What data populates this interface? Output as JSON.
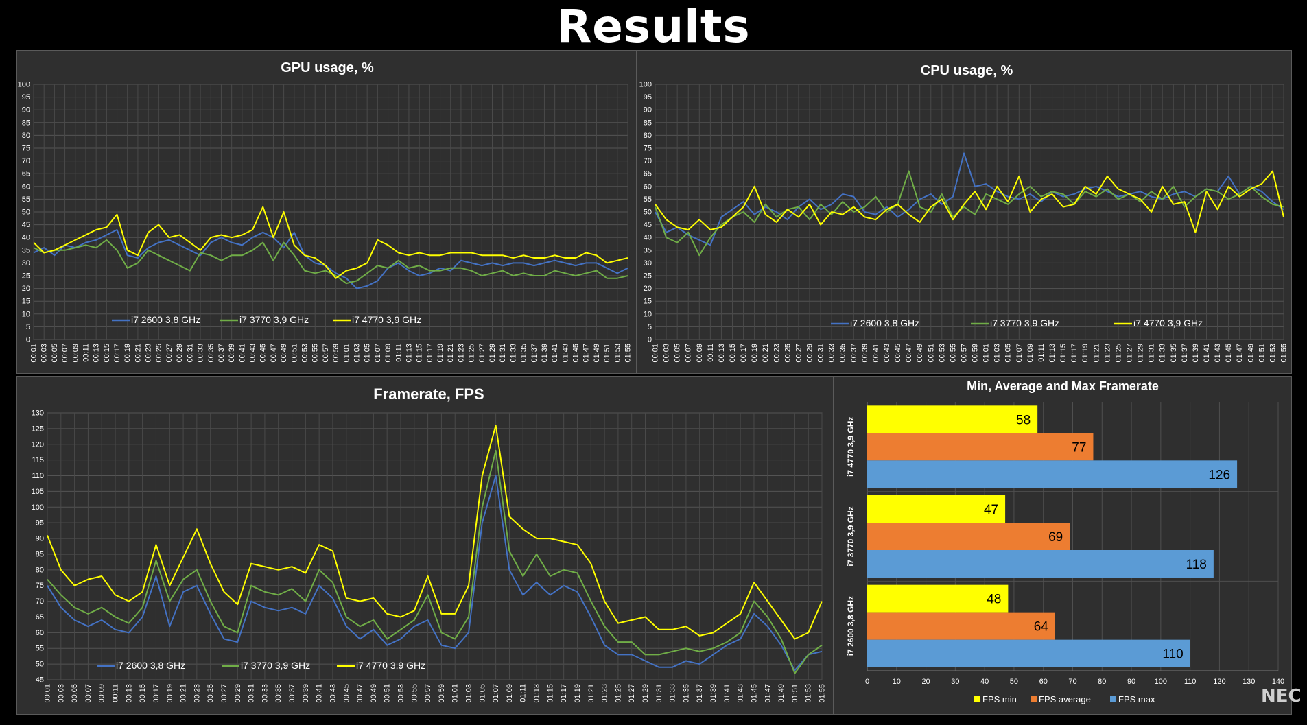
{
  "page_title": "Results",
  "watermark": "NEC",
  "chart_data": [
    {
      "id": "gpu",
      "type": "line",
      "title": "GPU usage, %",
      "ylim": [
        0,
        100
      ],
      "ytick_step": 5,
      "grid": true,
      "legend_position": "bottom-inside",
      "x": [
        "00:01",
        "00:03",
        "00:05",
        "00:07",
        "00:09",
        "00:11",
        "00:13",
        "00:15",
        "00:17",
        "00:19",
        "00:21",
        "00:23",
        "00:25",
        "00:27",
        "00:29",
        "00:31",
        "00:33",
        "00:35",
        "00:37",
        "00:39",
        "00:41",
        "00:43",
        "00:45",
        "00:47",
        "00:49",
        "00:51",
        "00:53",
        "00:55",
        "00:57",
        "00:59",
        "01:01",
        "01:03",
        "01:05",
        "01:07",
        "01:09",
        "01:11",
        "01:13",
        "01:15",
        "01:17",
        "01:19",
        "01:21",
        "01:23",
        "01:25",
        "01:27",
        "01:29",
        "01:31",
        "01:33",
        "01:35",
        "01:37",
        "01:39",
        "01:41",
        "01:43",
        "01:45",
        "01:47",
        "01:49",
        "01:51",
        "01:53",
        "01:55"
      ],
      "series": [
        {
          "name": "i7 2600 3,8 GHz",
          "color": "#4472c4",
          "values": [
            34,
            36,
            33,
            37,
            36,
            38,
            39,
            41,
            43,
            33,
            32,
            36,
            38,
            39,
            37,
            35,
            33,
            38,
            40,
            38,
            37,
            40,
            42,
            40,
            36,
            42,
            33,
            30,
            29,
            26,
            24,
            20,
            21,
            23,
            28,
            30,
            27,
            25,
            26,
            28,
            27,
            31,
            30,
            29,
            30,
            29,
            30,
            30,
            29,
            30,
            31,
            30,
            29,
            30,
            30,
            28,
            26,
            28
          ]
        },
        {
          "name": "i7 3770  3,9 GHz",
          "color": "#70ad47",
          "values": [
            36,
            34,
            35,
            35,
            36,
            37,
            36,
            39,
            35,
            28,
            30,
            35,
            33,
            31,
            29,
            27,
            34,
            33,
            31,
            33,
            33,
            35,
            38,
            31,
            38,
            33,
            27,
            26,
            27,
            25,
            22,
            23,
            26,
            29,
            28,
            31,
            28,
            29,
            27,
            27,
            28,
            28,
            27,
            25,
            26,
            27,
            25,
            26,
            25,
            25,
            27,
            26,
            25,
            26,
            27,
            24,
            24,
            25
          ]
        },
        {
          "name": "i7 4770  3,9 GHz",
          "color": "#ffff00",
          "values": [
            38,
            34,
            35,
            37,
            39,
            41,
            43,
            44,
            49,
            35,
            33,
            42,
            45,
            40,
            41,
            38,
            35,
            40,
            41,
            40,
            41,
            43,
            52,
            40,
            50,
            37,
            33,
            32,
            29,
            24,
            27,
            28,
            30,
            39,
            37,
            34,
            33,
            34,
            33,
            33,
            34,
            34,
            34,
            33,
            33,
            33,
            32,
            33,
            32,
            32,
            33,
            32,
            32,
            34,
            33,
            30,
            31,
            32
          ]
        }
      ]
    },
    {
      "id": "cpu",
      "type": "line",
      "title": "CPU usage, %",
      "ylim": [
        0,
        100
      ],
      "ytick_step": 5,
      "grid": true,
      "legend_position": "bottom-inside",
      "x": [
        "00:01",
        "00:03",
        "00:05",
        "00:07",
        "00:09",
        "00:11",
        "00:13",
        "00:15",
        "00:17",
        "00:19",
        "00:21",
        "00:23",
        "00:25",
        "00:27",
        "00:29",
        "00:31",
        "00:33",
        "00:35",
        "00:37",
        "00:39",
        "00:41",
        "00:43",
        "00:45",
        "00:47",
        "00:49",
        "00:51",
        "00:53",
        "00:55",
        "00:57",
        "00:59",
        "01:01",
        "01:03",
        "01:05",
        "01:07",
        "01:09",
        "01:11",
        "01:13",
        "01:15",
        "01:17",
        "01:19",
        "01:21",
        "01:23",
        "01:25",
        "01:27",
        "01:29",
        "01:31",
        "01:33",
        "01:35",
        "01:37",
        "01:39",
        "01:41",
        "01:43",
        "01:45",
        "01:47",
        "01:49",
        "01:51",
        "01:53",
        "01:55"
      ],
      "series": [
        {
          "name": "i7 2600 3,8 GHz",
          "color": "#4472c4",
          "values": [
            50,
            42,
            44,
            41,
            39,
            37,
            48,
            51,
            54,
            49,
            52,
            50,
            47,
            52,
            55,
            51,
            53,
            57,
            56,
            50,
            49,
            52,
            48,
            51,
            55,
            57,
            53,
            56,
            73,
            60,
            61,
            58,
            56,
            55,
            57,
            54,
            58,
            56,
            57,
            59,
            60,
            58,
            56,
            57,
            58,
            56,
            55,
            57,
            58,
            56,
            59,
            58,
            64,
            57,
            60,
            58,
            54,
            51
          ]
        },
        {
          "name": "i7 3770  3,9 GHz",
          "color": "#70ad47",
          "values": [
            52,
            40,
            38,
            42,
            33,
            40,
            45,
            48,
            50,
            46,
            53,
            48,
            51,
            52,
            47,
            53,
            49,
            54,
            50,
            52,
            56,
            50,
            53,
            66,
            52,
            50,
            57,
            48,
            52,
            49,
            57,
            55,
            53,
            57,
            60,
            56,
            58,
            57,
            53,
            58,
            56,
            59,
            55,
            57,
            54,
            58,
            55,
            60,
            52,
            56,
            59,
            58,
            55,
            57,
            60,
            56,
            53,
            52
          ]
        },
        {
          "name": "i7 4770  3,9 GHz",
          "color": "#ffff00",
          "values": [
            53,
            47,
            44,
            43,
            47,
            43,
            44,
            48,
            52,
            60,
            49,
            46,
            51,
            48,
            53,
            45,
            50,
            49,
            52,
            48,
            47,
            51,
            53,
            49,
            46,
            52,
            55,
            47,
            53,
            58,
            51,
            60,
            54,
            64,
            50,
            55,
            57,
            52,
            53,
            60,
            57,
            64,
            59,
            57,
            55,
            50,
            60,
            53,
            54,
            42,
            58,
            51,
            60,
            56,
            59,
            61,
            66,
            48
          ]
        }
      ]
    },
    {
      "id": "fps",
      "type": "line",
      "title": "Framerate, FPS",
      "ylim": [
        45,
        130
      ],
      "ytick_step": 5,
      "grid": true,
      "legend_position": "bottom-inside",
      "x": [
        "00:01",
        "00:03",
        "00:05",
        "00:07",
        "00:09",
        "00:11",
        "00:13",
        "00:15",
        "00:17",
        "00:19",
        "00:21",
        "00:23",
        "00:25",
        "00:27",
        "00:29",
        "00:31",
        "00:33",
        "00:35",
        "00:37",
        "00:39",
        "00:41",
        "00:43",
        "00:45",
        "00:47",
        "00:49",
        "00:51",
        "00:53",
        "00:55",
        "00:57",
        "00:59",
        "01:01",
        "01:03",
        "01:05",
        "01:07",
        "01:09",
        "01:11",
        "01:13",
        "01:15",
        "01:17",
        "01:19",
        "01:21",
        "01:23",
        "01:25",
        "01:27",
        "01:29",
        "01:31",
        "01:33",
        "01:35",
        "01:37",
        "01:39",
        "01:41",
        "01:43",
        "01:45",
        "01:47",
        "01:49",
        "01:51",
        "01:53",
        "01:55"
      ],
      "series": [
        {
          "name": "i7 2600 3,8 GHz",
          "color": "#4472c4",
          "values": [
            75,
            68,
            64,
            62,
            64,
            61,
            60,
            65,
            78,
            62,
            73,
            75,
            66,
            58,
            57,
            70,
            68,
            67,
            68,
            66,
            75,
            71,
            62,
            58,
            61,
            56,
            58,
            62,
            64,
            56,
            55,
            60,
            95,
            110,
            80,
            72,
            76,
            72,
            75,
            73,
            65,
            56,
            53,
            53,
            51,
            49,
            49,
            51,
            50,
            53,
            56,
            58,
            66,
            62,
            56,
            48,
            53,
            54
          ]
        },
        {
          "name": "i7 3770  3,9 GHz",
          "color": "#70ad47",
          "values": [
            77,
            72,
            68,
            66,
            68,
            65,
            63,
            68,
            83,
            70,
            77,
            80,
            70,
            62,
            60,
            75,
            73,
            72,
            74,
            70,
            80,
            76,
            65,
            62,
            64,
            58,
            61,
            64,
            72,
            60,
            58,
            65,
            100,
            118,
            86,
            78,
            85,
            78,
            80,
            79,
            70,
            62,
            57,
            57,
            53,
            53,
            54,
            55,
            54,
            55,
            57,
            60,
            70,
            65,
            58,
            47,
            53,
            56
          ]
        },
        {
          "name": "i7 4770  3,9 GHz",
          "color": "#ffff00",
          "values": [
            91,
            80,
            75,
            77,
            78,
            72,
            70,
            73,
            88,
            75,
            84,
            93,
            82,
            73,
            69,
            82,
            81,
            80,
            81,
            79,
            88,
            86,
            71,
            70,
            71,
            66,
            65,
            67,
            78,
            66,
            66,
            75,
            110,
            126,
            97,
            93,
            90,
            90,
            89,
            88,
            82,
            70,
            63,
            64,
            65,
            61,
            61,
            62,
            59,
            60,
            63,
            66,
            76,
            70,
            64,
            58,
            60,
            70
          ]
        }
      ]
    },
    {
      "id": "minmax",
      "type": "bar",
      "orientation": "horizontal",
      "title": "Min, Average and Max Framerate",
      "categories": [
        "i7 4770  3,9 GHz",
        "i7 3770  3,9 GHz",
        "i7 2600 3,8 GHz"
      ],
      "xlim": [
        0,
        140
      ],
      "xtick_step": 10,
      "grid": true,
      "legend_position": "bottom",
      "series": [
        {
          "name": "FPS min",
          "color": "#ffff00",
          "values": [
            58,
            47,
            48
          ]
        },
        {
          "name": "FPS average",
          "color": "#ed7d31",
          "values": [
            77,
            69,
            64
          ]
        },
        {
          "name": "FPS max",
          "color": "#5b9bd5",
          "values": [
            126,
            118,
            110
          ]
        }
      ]
    }
  ]
}
